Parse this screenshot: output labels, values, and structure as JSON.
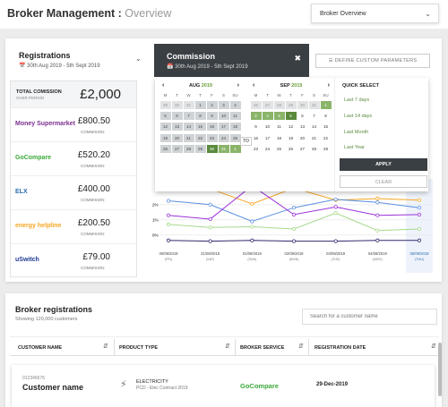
{
  "header": {
    "title": "Broker Management :",
    "subtitle": "Overview",
    "view_select": "Broker Overview"
  },
  "registrations": {
    "title": "Registrations",
    "date_range": "30th Aug 2019 - 5th Sept 2019"
  },
  "commission": {
    "title": "Commission",
    "date_range": "30th Aug 2019 - 5th Sept 2019",
    "define_label": "DEFINE CUSTOM PARAMETERS"
  },
  "stats": {
    "total_label": "TOTAL COMISSION",
    "total_sub": "OVER PERIOD",
    "total_value": "£2,000",
    "rows": [
      {
        "logo": "Money Supermarket",
        "value": "£800.50",
        "sub": "COMMISION",
        "color": "#7a2f8f"
      },
      {
        "logo": "GoCompare",
        "value": "£520.20",
        "sub": "COMMISION",
        "color": "#3caa3c"
      },
      {
        "logo": "ELX",
        "value": "£400.00",
        "sub": "COMMISION",
        "color": "#2b6cb0"
      },
      {
        "logo": "energy helpline",
        "value": "£200.50",
        "sub": "COMMISION",
        "color": "#f5a623"
      },
      {
        "logo": "uSwitch",
        "value": "£79.00",
        "sub": "COMMISION",
        "color": "#1f3a93"
      }
    ]
  },
  "calendar": {
    "aug_month": "AUG",
    "aug_year": "2019",
    "sep_month": "SEP",
    "sep_year": "2019",
    "to_label": "TO",
    "weekdays": [
      "M",
      "T",
      "W",
      "T",
      "F",
      "S",
      "SU"
    ],
    "aug_rows": [
      [
        "29",
        "30",
        "31",
        "1",
        "2",
        "3",
        "4"
      ],
      [
        "5",
        "6",
        "7",
        "8",
        "9",
        "10",
        "11"
      ],
      [
        "12",
        "13",
        "14",
        "15",
        "16",
        "17",
        "18"
      ],
      [
        "19",
        "20",
        "21",
        "22",
        "23",
        "24",
        "25"
      ],
      [
        "26",
        "27",
        "28",
        "29",
        "30",
        "31",
        "1"
      ]
    ],
    "sep_rows": [
      [
        "26",
        "27",
        "28",
        "29",
        "30",
        "31",
        "1"
      ],
      [
        "2",
        "3",
        "4",
        "5",
        "6",
        "7",
        "8"
      ],
      [
        "9",
        "10",
        "11",
        "12",
        "13",
        "14",
        "15"
      ],
      [
        "16",
        "17",
        "18",
        "19",
        "20",
        "21",
        "22"
      ],
      [
        "23",
        "24",
        "25",
        "26",
        "27",
        "28",
        "29"
      ]
    ],
    "quick_title": "QUICK SELECT",
    "quick": [
      "Last 7 days",
      "Last 14 days",
      "Last Month",
      "Last Year"
    ],
    "apply": "APPLY",
    "clear": "CLEAR"
  },
  "chart_data": {
    "type": "line",
    "x": [
      "30/08/2019 (FRI)",
      "31/08/2019 (SAT)",
      "01/09/2019 (SUN)",
      "02/09/2019 (MON)",
      "03/09/2019 (TUE)",
      "04/09/2019 (WED)",
      "05/09/2019 (THU)"
    ],
    "yticks": [
      "2%",
      "1%",
      "0%"
    ],
    "ylim": [
      -0.6,
      3.4
    ],
    "series": [
      {
        "color": "#f5a623",
        "values": [
          3.3,
          3.05,
          2.05,
          3.1,
          2.3,
          2.4,
          2.3
        ]
      },
      {
        "color": "#5b8fe0",
        "values": [
          2.25,
          2.0,
          0.9,
          1.8,
          2.35,
          2.15,
          1.8
        ]
      },
      {
        "color": "#9b30d9",
        "values": [
          1.3,
          1.05,
          3.25,
          1.35,
          1.85,
          1.3,
          1.35
        ]
      },
      {
        "color": "#a6d98a",
        "values": [
          0.7,
          0.5,
          0.55,
          0.4,
          1.45,
          0.3,
          0.4
        ]
      },
      {
        "color": "#2f2a6e",
        "values": [
          -0.35,
          -0.4,
          -0.35,
          -0.4,
          -0.4,
          -0.35,
          -0.35
        ]
      }
    ]
  },
  "broker_registrations": {
    "title": "Broker registrations",
    "subtitle": "Showing 120,000 customers",
    "search_placeholder": "Search for a customer name",
    "columns": [
      "CUSTOMER NAME",
      "PRODUCT TYPE",
      "BROKER SERVICE",
      "REGISTRATION DATE"
    ],
    "row": {
      "id": "012345676",
      "name": "Customer name",
      "product": "ELECTRICITY",
      "product_sub": "PCD - Elec Contract 2019",
      "broker": "GoCompare",
      "date": "29-Dec-2019"
    }
  }
}
